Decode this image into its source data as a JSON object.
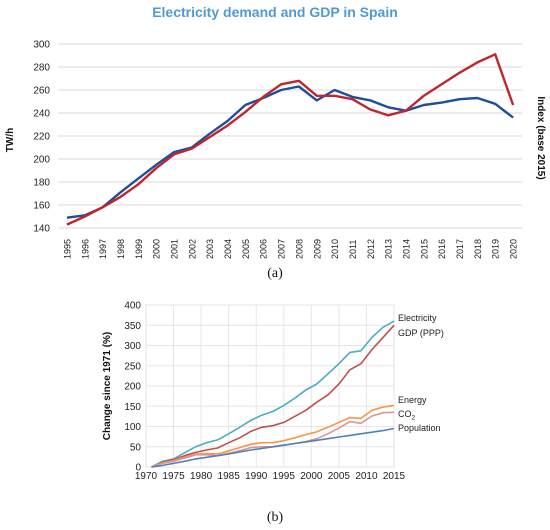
{
  "chart_data": [
    {
      "type": "line",
      "title": "Electricity demand and GDP in Spain",
      "ylabel": "TW/h",
      "y2label": "Index (base 2015)",
      "ylim": [
        140,
        300
      ],
      "yticks": [
        140,
        160,
        180,
        200,
        220,
        240,
        260,
        280,
        300
      ],
      "categories": [
        "1995",
        "1996",
        "1997",
        "1998",
        "1999",
        "2000",
        "2001",
        "2002",
        "2003",
        "2004",
        "2005",
        "2006",
        "2007",
        "2008",
        "2009",
        "2010",
        "2011",
        "2012",
        "2013",
        "2014",
        "2015",
        "2016",
        "2017",
        "2018",
        "2019",
        "2020"
      ],
      "grid": true,
      "series": [
        {
          "color": "#1f4e9c",
          "values": [
            149,
            151,
            158,
            171,
            183,
            195,
            206,
            210,
            222,
            233,
            247,
            253,
            260,
            263,
            251,
            260,
            254,
            251,
            245,
            242,
            247,
            249,
            252,
            253,
            248,
            236
          ]
        },
        {
          "color": "#c0262d",
          "values": [
            143,
            150,
            158,
            167,
            178,
            192,
            204,
            209,
            219,
            229,
            241,
            254,
            265,
            268,
            255,
            255,
            252,
            243,
            238,
            242,
            255,
            265,
            275,
            284,
            291,
            247
          ]
        }
      ],
      "caption": "(a)"
    },
    {
      "type": "line",
      "ylabel": "Change since 1971 (%)",
      "ylim": [
        0,
        400
      ],
      "yticks": [
        0,
        50,
        100,
        150,
        200,
        250,
        300,
        350,
        400
      ],
      "xticks": [
        1970,
        1975,
        1980,
        1985,
        1990,
        1995,
        2000,
        2005,
        2010,
        2015
      ],
      "xlim": [
        1970,
        2015
      ],
      "grid": true,
      "x": [
        1971,
        1973,
        1975,
        1977,
        1979,
        1981,
        1983,
        1985,
        1987,
        1989,
        1991,
        1993,
        1995,
        1997,
        1999,
        2001,
        2003,
        2005,
        2007,
        2009,
        2011,
        2013,
        2015
      ],
      "series": [
        {
          "name": "Electricity",
          "color": "#4aacc6",
          "values": [
            0,
            14,
            20,
            35,
            50,
            60,
            67,
            82,
            98,
            115,
            128,
            137,
            152,
            170,
            190,
            205,
            230,
            255,
            283,
            287,
            320,
            345,
            360
          ]
        },
        {
          "name": "GDP (PPP)",
          "color": "#c0504d",
          "values": [
            0,
            12,
            18,
            28,
            36,
            42,
            47,
            60,
            72,
            88,
            98,
            102,
            110,
            125,
            140,
            160,
            178,
            205,
            240,
            255,
            290,
            320,
            350
          ]
        },
        {
          "name": "Energy",
          "color": "#f79646",
          "values": [
            0,
            10,
            16,
            24,
            32,
            33,
            32,
            40,
            48,
            56,
            60,
            60,
            65,
            72,
            80,
            87,
            98,
            110,
            122,
            120,
            140,
            148,
            152
          ]
        },
        {
          "name": "CO2",
          "color": "#d99694",
          "values": [
            0,
            9,
            14,
            22,
            30,
            30,
            28,
            34,
            40,
            48,
            50,
            50,
            53,
            58,
            63,
            70,
            82,
            96,
            112,
            108,
            126,
            134,
            135
          ]
        },
        {
          "name": "Population",
          "color": "#4f81bd",
          "values": [
            0,
            4,
            9,
            14,
            20,
            24,
            28,
            32,
            37,
            42,
            46,
            50,
            54,
            58,
            62,
            66,
            70,
            74,
            78,
            82,
            86,
            90,
            95
          ]
        }
      ],
      "legend_labels": [
        "Electricity",
        "GDP (PPP)",
        "Energy",
        "CO",
        "2",
        "Population"
      ],
      "caption": "(b)"
    }
  ]
}
